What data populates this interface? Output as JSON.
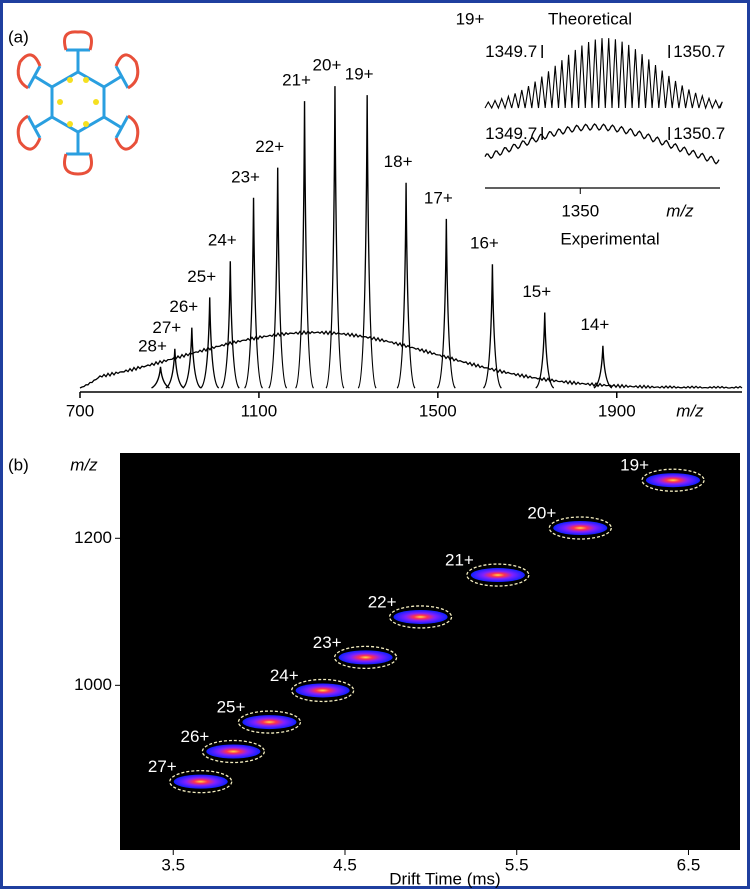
{
  "chart_data": [
    {
      "type": "spectrum",
      "panel_label": "(a)",
      "x": [
        880,
        912,
        950,
        990,
        1036,
        1088,
        1142,
        1202,
        1270,
        1342,
        1429,
        1519,
        1622,
        1739,
        1869
      ],
      "values": [
        7,
        13,
        20,
        30,
        42,
        63,
        73,
        95,
        100,
        97,
        68,
        56,
        41,
        25,
        14
      ],
      "labels": [
        "28+",
        "27+",
        "26+",
        "25+",
        "24+",
        "23+",
        "22+",
        "21+",
        "20+",
        "19+",
        "18+",
        "17+",
        "16+",
        "15+",
        "14+"
      ],
      "color": "#000000",
      "xlim": [
        700,
        2180
      ],
      "xticks": [
        700,
        1100,
        1500,
        1900
      ],
      "xlabel": "m/z",
      "ylim": [
        0,
        105
      ],
      "inset": {
        "charge_label": "19+",
        "title": "Theoretical",
        "subtitle": "Experimental",
        "xlim": [
          1349.25,
          1351.1
        ],
        "xticks": [
          1350
        ],
        "xlabel": "m/z",
        "markers": [
          1349.7,
          1350.7
        ]
      }
    },
    {
      "type": "drift-map",
      "panel_label": "(b)",
      "x": [
        3.66,
        3.85,
        4.06,
        4.37,
        4.62,
        4.94,
        5.39,
        5.87,
        6.41
      ],
      "values": [
        869,
        910,
        950,
        993,
        1038,
        1093,
        1150,
        1214,
        1279
      ],
      "labels": [
        "27+",
        "26+",
        "25+",
        "24+",
        "23+",
        "22+",
        "21+",
        "20+",
        "19+"
      ],
      "xlim": [
        3.19,
        6.8
      ],
      "ylim": [
        776,
        1316
      ],
      "xticks": [
        3.5,
        4.5,
        5.5,
        6.5
      ],
      "yticks": [
        1000,
        1200
      ],
      "xlabel": "Drift Time (ms)",
      "ylabel": "m/z",
      "background": "#000000"
    }
  ]
}
